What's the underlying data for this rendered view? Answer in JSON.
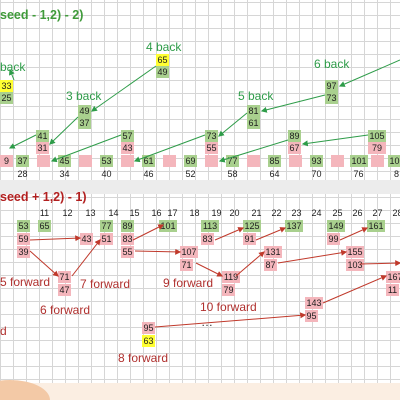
{
  "formula_top": "seed - 1,2) - 2)",
  "formula_bottom": "seed + 1,2) - 1)",
  "colors": {
    "green_cell": "#a9d08e",
    "pink_cell": "#f4b6bc",
    "yellow_cell": "#ffff33",
    "back_arrow": "#2e9c49",
    "forward_arrow": "#c0392b"
  },
  "top_section": {
    "back_labels": [
      "4 back",
      "back",
      "3 back",
      "5 back",
      "6 back"
    ],
    "yellow_pair": [
      "65",
      "49"
    ],
    "left_pair": [
      "33",
      "25"
    ],
    "cells_4": [
      "49",
      "37"
    ],
    "cells_5": [
      "81",
      "61"
    ],
    "cells_6": [
      "97",
      "73"
    ],
    "cells_3": [
      "41",
      "31"
    ],
    "cells_3b": [
      "57",
      "43"
    ],
    "cells_73": [
      "73",
      "55"
    ],
    "cells_89": [
      "89",
      "67"
    ],
    "cells_105": [
      "105",
      "79"
    ],
    "base_row": [
      "37",
      "45",
      "53",
      "61",
      "69",
      "77",
      "85",
      "93",
      "101",
      "10"
    ],
    "index_row": [
      "28",
      "34",
      "40",
      "46",
      "52",
      "58",
      "64",
      "70",
      "76",
      "8"
    ],
    "partial": "9"
  },
  "bottom_section": {
    "header_numbers": [
      "11",
      "12",
      "13",
      "14",
      "15",
      "16",
      "17",
      "18",
      "19",
      "20",
      "21",
      "22",
      "23",
      "24",
      "25",
      "26",
      "27",
      "28"
    ],
    "row1": [
      "53",
      "65",
      "77",
      "89",
      "101",
      "113",
      "125",
      "137",
      "149",
      "161"
    ],
    "row2": [
      "59",
      "39",
      "43",
      "51",
      "83",
      "55",
      "107",
      "71",
      "83",
      "91",
      "131",
      "87",
      "99",
      "155",
      "103"
    ],
    "forward_labels": [
      "5 forward",
      "7 forward",
      "9 forward",
      "6 forward",
      "10 forward",
      "8 forward"
    ],
    "mid_cells": [
      "71",
      "47",
      "119",
      "79",
      "143",
      "95",
      "167",
      "11"
    ],
    "yellow_pair": [
      "95",
      "63"
    ],
    "ellipsis": "…",
    "left_partial": "d"
  }
}
